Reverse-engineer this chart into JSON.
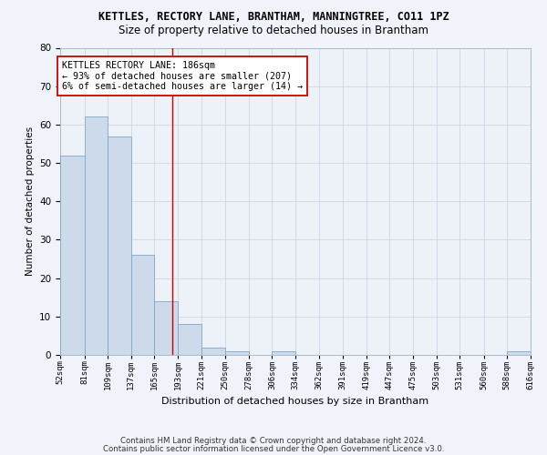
{
  "title": "KETTLES, RECTORY LANE, BRANTHAM, MANNINGTREE, CO11 1PZ",
  "subtitle": "Size of property relative to detached houses in Brantham",
  "xlabel": "Distribution of detached houses by size in Brantham",
  "ylabel": "Number of detached properties",
  "bar_color": "#ccdaeb",
  "bar_edge_color": "#7fa8c8",
  "bin_edges": [
    52,
    81,
    109,
    137,
    165,
    193,
    221,
    250,
    278,
    306,
    334,
    362,
    391,
    419,
    447,
    475,
    503,
    531,
    560,
    588,
    616
  ],
  "bar_heights": [
    52,
    62,
    57,
    26,
    14,
    8,
    2,
    1,
    0,
    1,
    0,
    0,
    0,
    0,
    0,
    0,
    0,
    0,
    0,
    1
  ],
  "ylim": [
    0,
    80
  ],
  "yticks": [
    0,
    10,
    20,
    30,
    40,
    50,
    60,
    70,
    80
  ],
  "property_line_x": 186,
  "annotation_line1": "KETTLES RECTORY LANE: 186sqm",
  "annotation_line2": "← 93% of detached houses are smaller (207)",
  "annotation_line3": "6% of semi-detached houses are larger (14) →",
  "annotation_box_color": "#ffffff",
  "annotation_box_edge": "#cc0000",
  "annotation_line_color": "#cc0000",
  "footer_line1": "Contains HM Land Registry data © Crown copyright and database right 2024.",
  "footer_line2": "Contains public sector information licensed under the Open Government Licence v3.0.",
  "background_color": "#f0f4fa",
  "plot_bg_color": "#edf1f8",
  "grid_color": "#c8d0de"
}
